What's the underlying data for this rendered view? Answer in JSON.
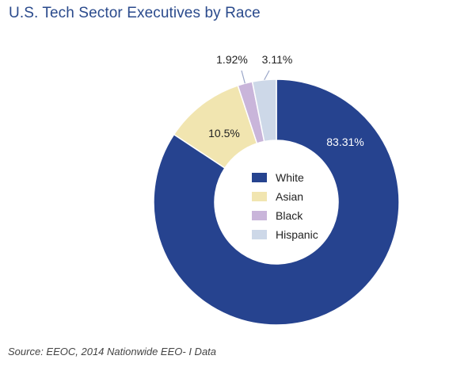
{
  "title": "U.S. Tech Sector Executives by Race",
  "source": "Source: EEOC, 2014 Nationwide EEO- I Data",
  "chart_data": {
    "type": "pie",
    "variant": "donut",
    "title": "U.S. Tech Sector Executives by Race",
    "categories": [
      "White",
      "Asian",
      "Black",
      "Hispanic"
    ],
    "values": [
      83.31,
      10.5,
      1.92,
      3.11
    ],
    "labels": [
      "83.31%",
      "10.5%",
      "1.92%",
      "3.11%"
    ],
    "colors": [
      "#26438f",
      "#f1e5b0",
      "#c9b5da",
      "#cdd8e8"
    ],
    "legend": {
      "placement": "center",
      "entries": [
        "White",
        "Asian",
        "Black",
        "Hispanic"
      ]
    }
  }
}
